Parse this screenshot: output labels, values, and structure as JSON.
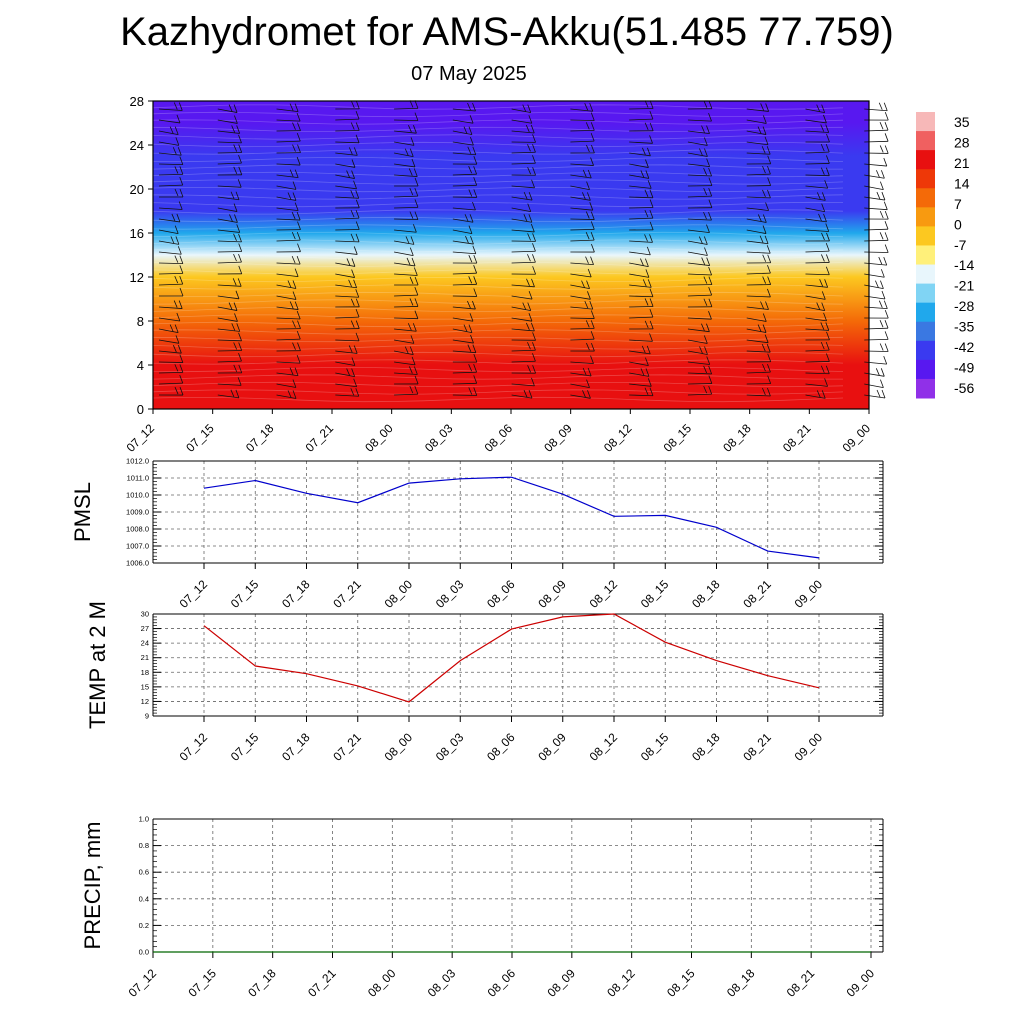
{
  "title": "Kazhydromet for AMS-Akku(51.485 77.759)",
  "subtitle": "07 May 2025",
  "chart_data": [
    {
      "type": "heatmap",
      "y_ticks": [
        "0",
        "4",
        "8",
        "12",
        "16",
        "20",
        "24",
        "28"
      ],
      "ylim": [
        0,
        28
      ],
      "x_ticks": [
        "07_12",
        "07_15",
        "07_18",
        "07_21",
        "08_00",
        "08_03",
        "08_06",
        "08_09",
        "08_12",
        "08_15",
        "08_18",
        "08_21",
        "09_00"
      ],
      "colorbar": {
        "labels": [
          "35",
          "28",
          "21",
          "14",
          "7",
          "0",
          "-7",
          "-14",
          "-21",
          "-28",
          "-35",
          "-42",
          "-49",
          "-56"
        ],
        "colors": [
          "#f7b8b8",
          "#f06060",
          "#e81010",
          "#ee3808",
          "#f46a08",
          "#f89a10",
          "#fcc820",
          "#fff07a",
          "#e8f6fc",
          "#80d4f4",
          "#20a8ec",
          "#3a78e2",
          "#3a3af0",
          "#5818f0",
          "#9030e8"
        ]
      },
      "layers": [
        {
          "level": 0,
          "value": 24
        },
        {
          "level": 4,
          "value": 18
        },
        {
          "level": 8,
          "value": 5
        },
        {
          "level": 12,
          "value": -10
        },
        {
          "level": 14,
          "value": -18
        },
        {
          "level": 16,
          "value": -32
        },
        {
          "level": 18,
          "value": -46
        },
        {
          "level": 20,
          "value": -52
        },
        {
          "level": 23,
          "value": -50
        },
        {
          "level": 26,
          "value": -55
        },
        {
          "level": 28,
          "value": -58
        }
      ]
    },
    {
      "type": "line",
      "ylabel": "PMSL",
      "ylim": [
        1006.0,
        1012.0
      ],
      "y_ticks": [
        "1006.0",
        "1007.0",
        "1008.0",
        "1009.0",
        "1010.0",
        "1011.0",
        "1012.0"
      ],
      "categories": [
        "07_12",
        "07_15",
        "07_18",
        "07_21",
        "08_00",
        "08_03",
        "08_06",
        "08_09",
        "08_12",
        "08_15",
        "08_18",
        "08_21",
        "09_00"
      ],
      "series": [
        {
          "values": [
            1010.4,
            1010.85,
            1010.1,
            1009.55,
            1010.7,
            1010.95,
            1011.05,
            1010.05,
            1008.75,
            1008.8,
            1008.1,
            1006.7,
            1006.3
          ],
          "color": "#0000cc"
        }
      ]
    },
    {
      "type": "line",
      "ylabel": "TEMP at 2 M",
      "ylim": [
        9,
        30
      ],
      "y_ticks": [
        "9",
        "12",
        "15",
        "18",
        "21",
        "24",
        "27",
        "30"
      ],
      "categories": [
        "07_12",
        "07_15",
        "07_18",
        "07_21",
        "08_00",
        "08_03",
        "08_06",
        "08_09",
        "08_12",
        "08_15",
        "08_18",
        "08_21",
        "09_00"
      ],
      "series": [
        {
          "values": [
            27.6,
            19.3,
            17.7,
            15.2,
            11.9,
            20.4,
            26.9,
            29.4,
            30.0,
            24.2,
            20.4,
            17.3,
            14.8
          ],
          "color": "#cc0000"
        }
      ]
    },
    {
      "type": "line",
      "ylabel": "PRECIP, mm",
      "ylim": [
        0.0,
        1.0
      ],
      "y_ticks": [
        "0.0",
        "0.2",
        "0.4",
        "0.6",
        "0.8",
        "1.0"
      ],
      "x_ticks": [
        "07_12",
        "07_15",
        "07_18",
        "07_21",
        "08_00",
        "08_03",
        "08_06",
        "08_09",
        "08_12",
        "08_15",
        "08_18",
        "08_21",
        "09_00"
      ],
      "series": [
        {
          "values": [
            0,
            0,
            0,
            0,
            0,
            0,
            0,
            0,
            0,
            0,
            0,
            0,
            0
          ],
          "color": "#006600"
        }
      ]
    }
  ]
}
